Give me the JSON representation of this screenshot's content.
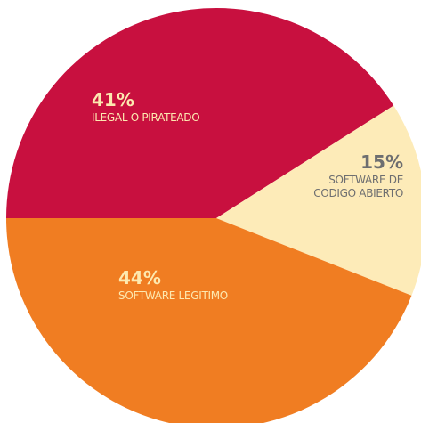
{
  "chart_data": {
    "type": "pie",
    "categories": [
      "ILEGAL O PIRATEADO",
      "SOFTWARE DE\nCODIGO ABIERTO",
      "SOFTWARE LEGITIMO"
    ],
    "values": [
      41,
      15,
      44
    ],
    "value_labels": [
      "41%",
      "15%",
      "44%"
    ],
    "colors": [
      "#c8103f",
      "#fdebb8",
      "#f07d22"
    ]
  }
}
